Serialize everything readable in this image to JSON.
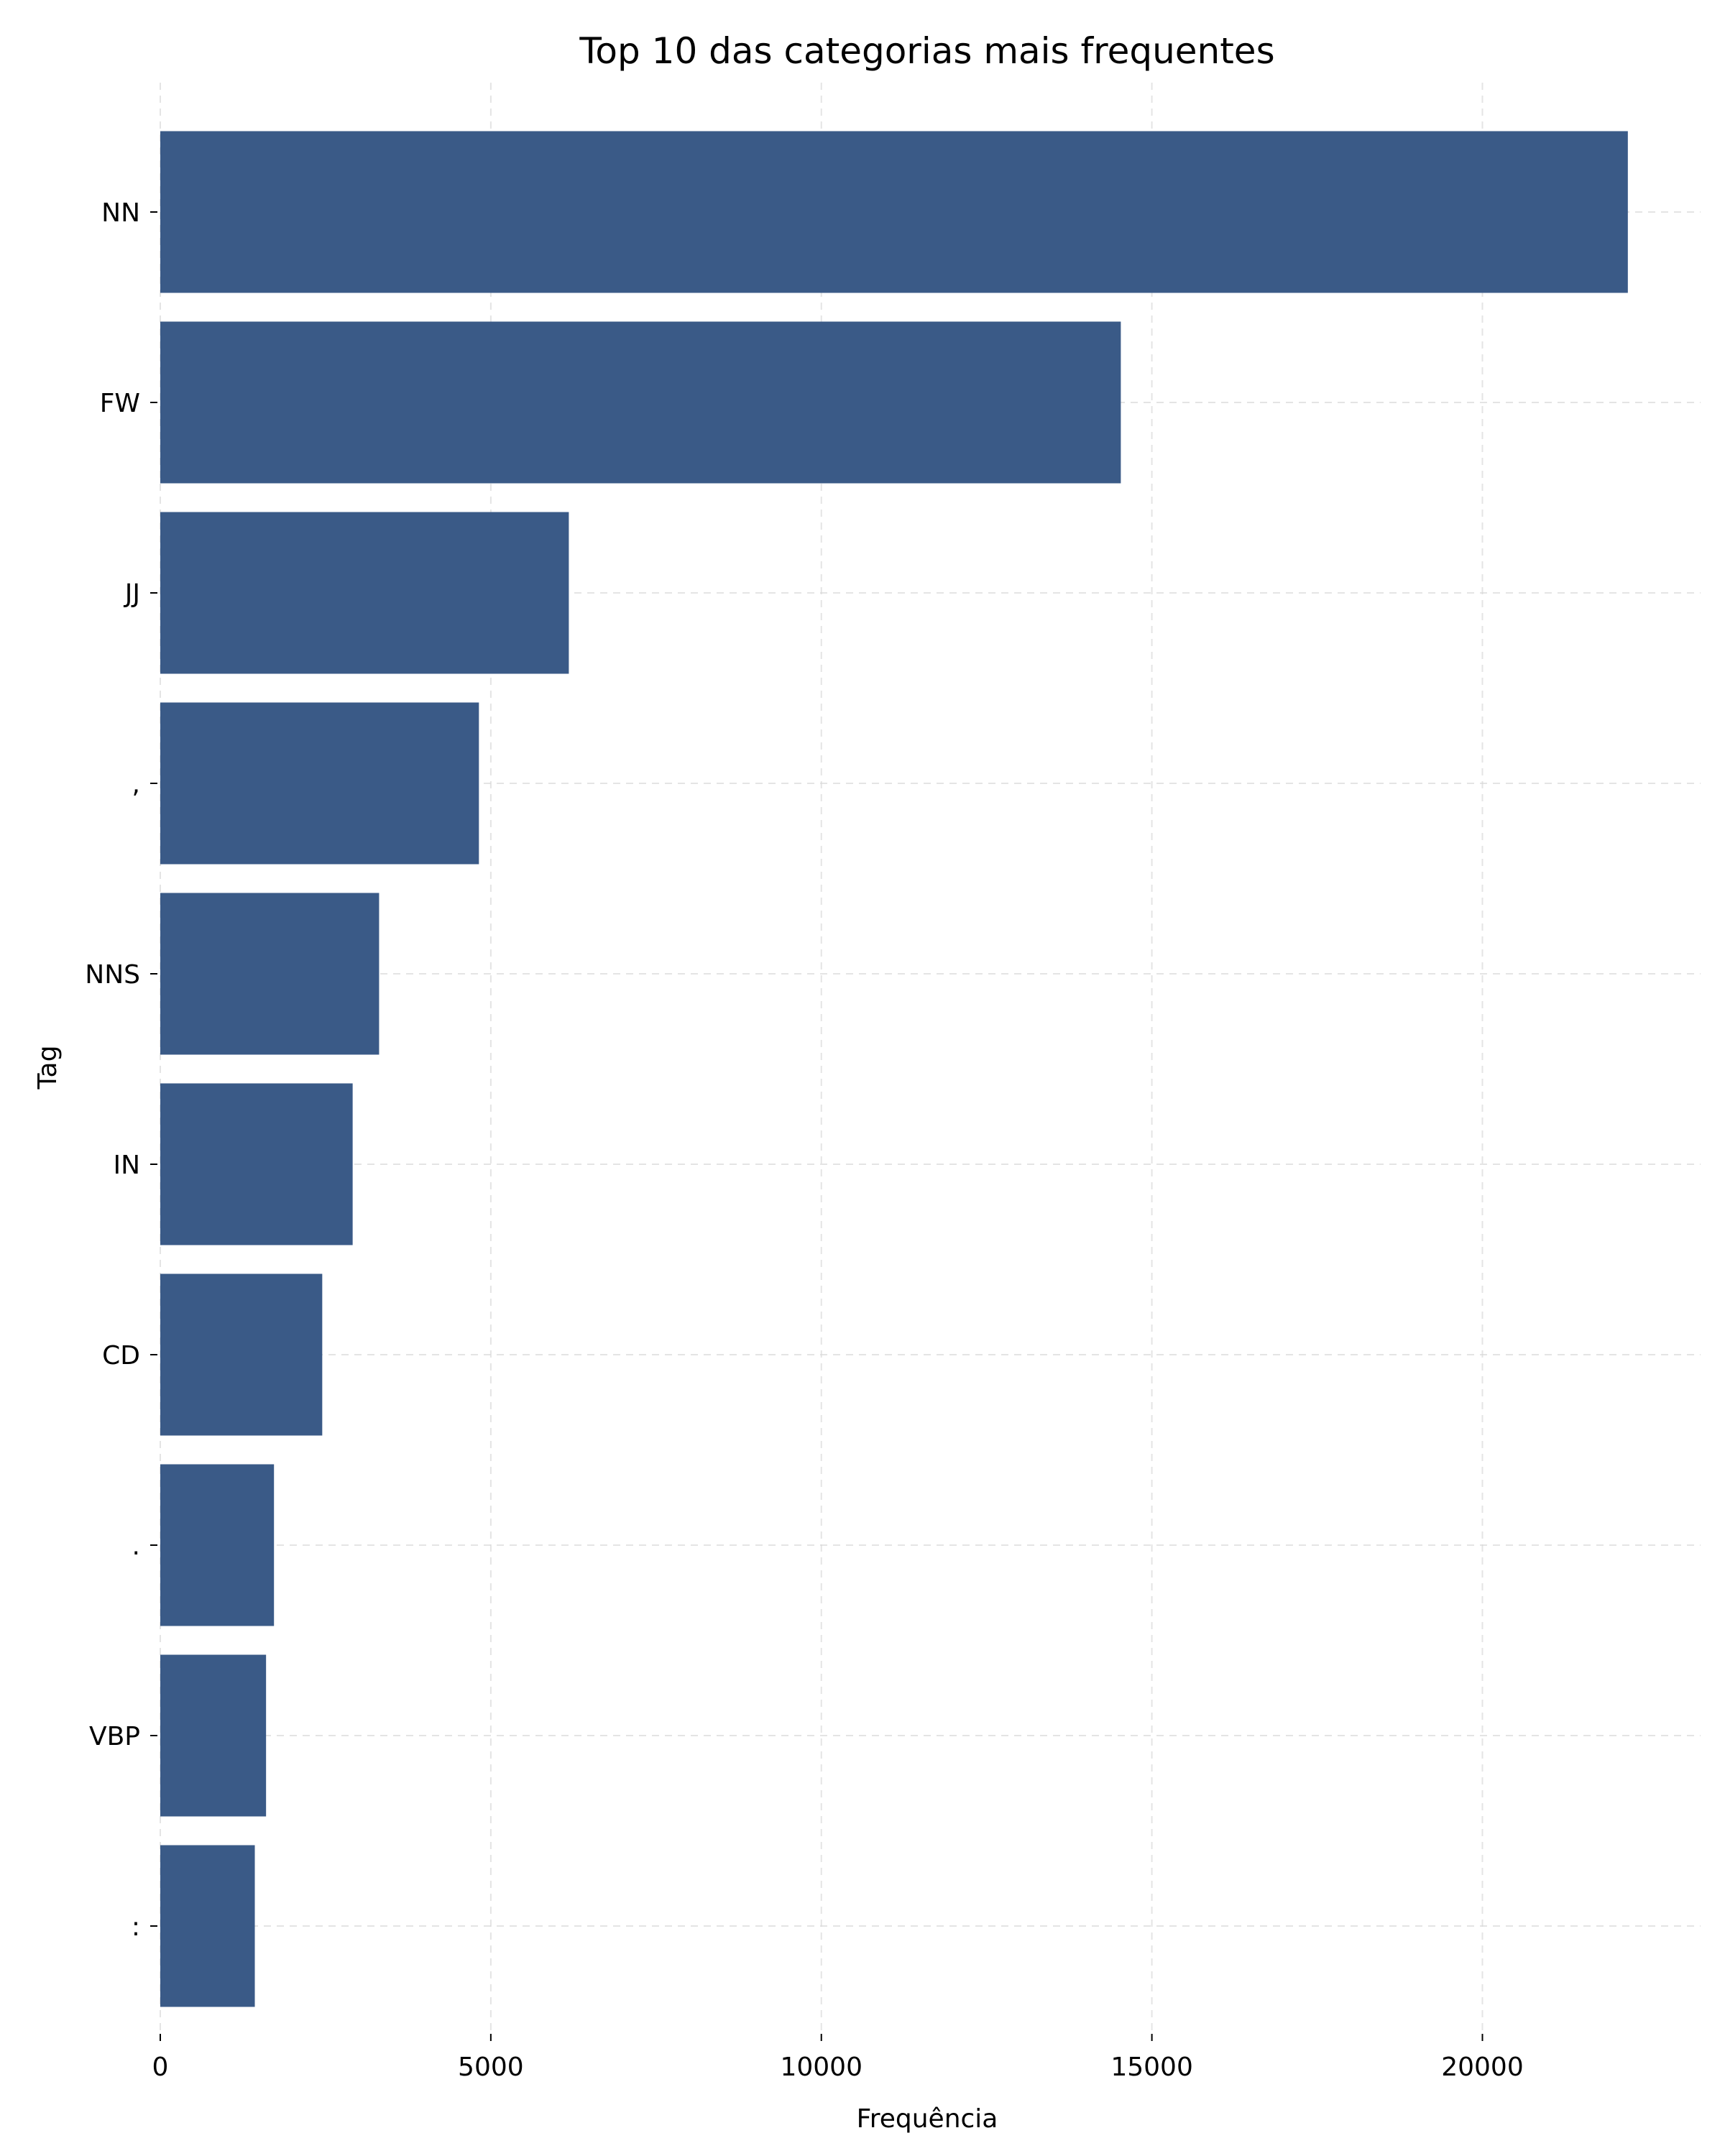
{
  "chart_data": {
    "type": "bar",
    "orientation": "horizontal",
    "title": "Top 10 das categorias mais frequentes",
    "xlabel": "Frequência",
    "ylabel": "Tag",
    "categories": [
      "NN",
      "FW",
      "JJ",
      ",",
      "NNS",
      "IN",
      "CD",
      ".",
      "VBP",
      ":"
    ],
    "values": [
      22200,
      14530,
      6180,
      4820,
      3310,
      2910,
      2450,
      1720,
      1600,
      1430
    ],
    "xlim": [
      0,
      23300
    ],
    "xticks": [
      0,
      5000,
      10000,
      15000,
      20000
    ],
    "grid": true,
    "bar_color": "#3a5a87"
  }
}
